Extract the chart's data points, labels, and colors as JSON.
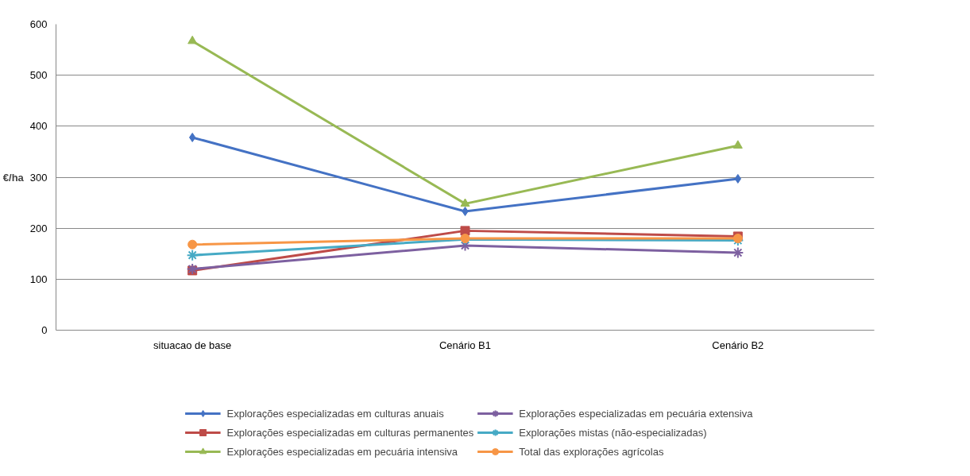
{
  "chart_data": {
    "type": "line",
    "ylabel": "€/ha",
    "categories": [
      "situacao de base",
      "Cenário B1",
      "Cenário B2"
    ],
    "ylim": [
      0,
      600
    ],
    "yticks": [
      0,
      100,
      200,
      300,
      400,
      500,
      600
    ],
    "grid": "y",
    "legend": "bottom",
    "line_style": "solid",
    "series": [
      {
        "name": "Explorações especializadas em culturas anuais",
        "color": "#4472c4",
        "marker": "diamond",
        "values": [
          378,
          233,
          297
        ]
      },
      {
        "name": "Explorações especializadas em culturas permanentes",
        "color": "#be4b48",
        "marker": "square",
        "values": [
          117,
          195,
          184
        ]
      },
      {
        "name": "Explorações especializadas em pecuária intensiva",
        "color": "#98b954",
        "marker": "triangle",
        "values": [
          567,
          248,
          362
        ]
      },
      {
        "name": "Explorações especializadas em pecuária extensiva",
        "color": "#7d60a0",
        "marker": "cross",
        "values": [
          120,
          166,
          152
        ]
      },
      {
        "name": "Explorações mistas (não-especializadas)",
        "color": "#46aac5",
        "marker": "cross",
        "values": [
          147,
          178,
          176
        ]
      },
      {
        "name": "Total das explorações agrícolas",
        "color": "#f79646",
        "marker": "circle",
        "values": [
          168,
          180,
          180
        ]
      }
    ]
  }
}
